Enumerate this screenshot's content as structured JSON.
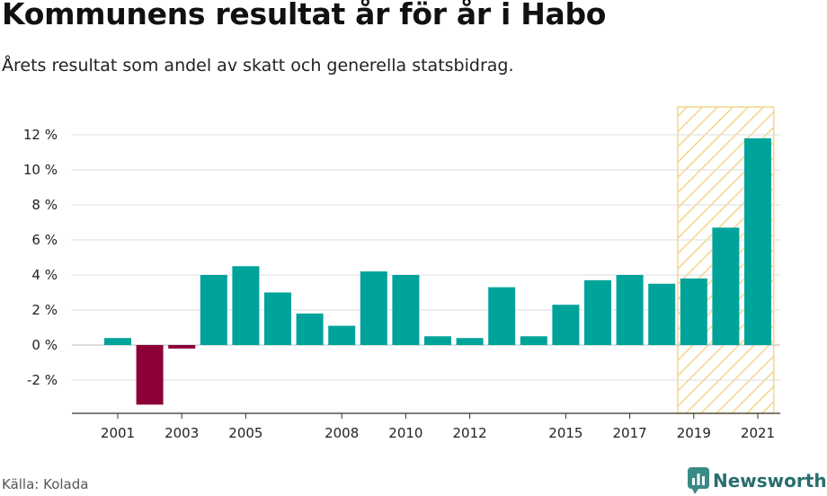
{
  "title": "Kommunens resultat år för år i Habo",
  "subtitle": "Årets resultat som andel av skatt och generella statsbidrag.",
  "source": "Källa: Kolada",
  "logo_text": "Newsworthy",
  "colors": {
    "positive": "#00a39a",
    "negative": "#8b0038",
    "highlight_stripe": "#f5d58a",
    "grid": "#dddddd",
    "axis": "#333333"
  },
  "chart_data": {
    "type": "bar",
    "title": "Kommunens resultat år för år i Habo",
    "subtitle": "Årets resultat som andel av skatt och generella statsbidrag.",
    "categories": [
      "2001",
      "2002",
      "2003",
      "2004",
      "2005",
      "2006",
      "2007",
      "2008",
      "2009",
      "2010",
      "2011",
      "2012",
      "2013",
      "2014",
      "2015",
      "2016",
      "2017",
      "2018",
      "2019",
      "2020",
      "2021"
    ],
    "values": [
      0.4,
      -3.4,
      -0.2,
      4.0,
      4.5,
      3.0,
      1.8,
      1.1,
      4.2,
      4.0,
      0.5,
      0.4,
      3.3,
      0.5,
      2.3,
      3.7,
      4.0,
      3.5,
      3.8,
      6.7,
      11.8
    ],
    "x_tick_labels": [
      "2001",
      "2003",
      "2005",
      "2008",
      "2010",
      "2012",
      "2015",
      "2017",
      "2019",
      "2021"
    ],
    "y_ticks": [
      -2,
      0,
      2,
      4,
      6,
      8,
      10,
      12
    ],
    "y_tick_labels": [
      "-2 %",
      "0 %",
      "2 %",
      "4 %",
      "6 %",
      "8 %",
      "10 %",
      "12 %"
    ],
    "ylim": [
      -4,
      13.5
    ],
    "highlight_categories": [
      "2019",
      "2020",
      "2021"
    ],
    "grid": true,
    "legend": "none"
  }
}
